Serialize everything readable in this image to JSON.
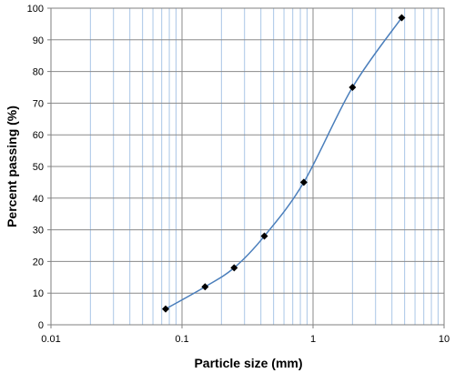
{
  "chart_data": {
    "type": "scatter",
    "title": "",
    "xlabel": "Particle size (mm)",
    "ylabel": "Percent passing (%)",
    "x_scale": "log",
    "xlim": [
      0.01,
      10
    ],
    "ylim": [
      0,
      100
    ],
    "x_ticks": [
      0.01,
      0.1,
      1,
      10
    ],
    "x_tick_labels": [
      "0.01",
      "0.1",
      "1",
      "10"
    ],
    "y_ticks": [
      0,
      10,
      20,
      30,
      40,
      50,
      60,
      70,
      80,
      90,
      100
    ],
    "y_tick_labels": [
      "0",
      "10",
      "20",
      "30",
      "40",
      "50",
      "60",
      "70",
      "80",
      "90",
      "100"
    ],
    "grid": true,
    "legend": "none",
    "series": [
      {
        "x": [
          0.075,
          0.15,
          0.25,
          0.425,
          0.85,
          2.0,
          4.75
        ],
        "y": [
          5,
          12,
          18,
          28,
          45,
          75,
          97
        ],
        "line": "smooth",
        "marker": "diamond",
        "line_color": "#4a7ebb",
        "marker_color": "#000000"
      }
    ],
    "colors": {
      "major_grid": "#8a8a8a",
      "minor_grid": "#aac6e6",
      "axis": "#7f7f7f"
    }
  }
}
